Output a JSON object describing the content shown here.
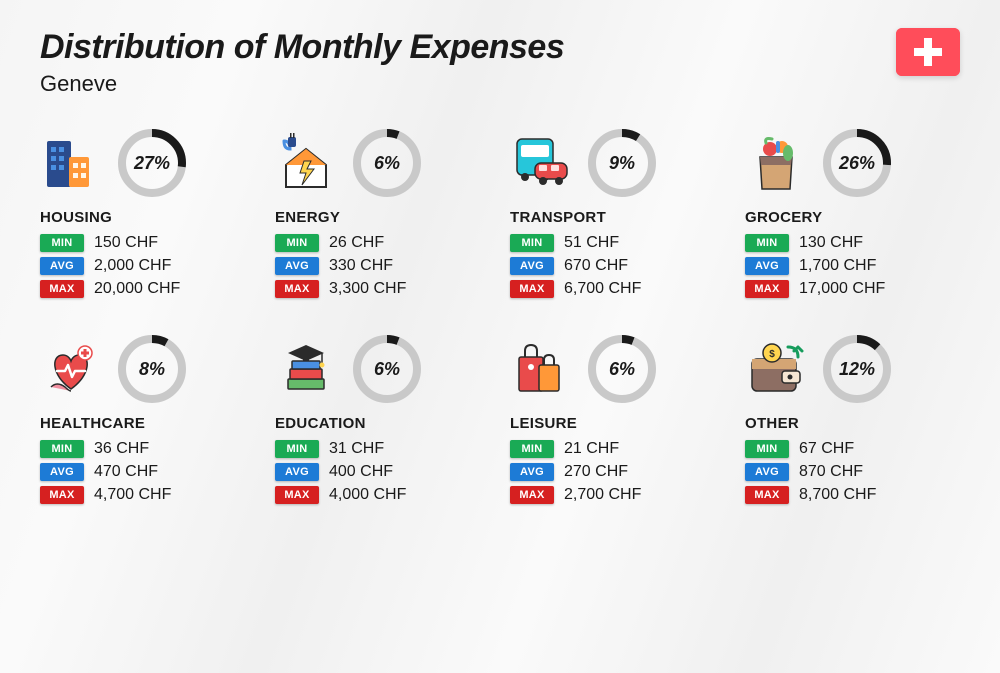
{
  "title": "Distribution of Monthly Expenses",
  "subtitle": "Geneve",
  "currency": "CHF",
  "flag": {
    "bg": "#ff4d5a",
    "cross": "#ffffff"
  },
  "badges": {
    "min": {
      "label": "MIN",
      "color": "#1aaa55"
    },
    "avg": {
      "label": "AVG",
      "color": "#1d7bd6"
    },
    "max": {
      "label": "MAX",
      "color": "#d62020"
    }
  },
  "donut": {
    "track_color": "#c9c9c9",
    "fill_color": "#1a1a1a",
    "stroke_width": 8,
    "radius": 30
  },
  "categories": [
    {
      "key": "housing",
      "name": "HOUSING",
      "pct": 27,
      "min": "150",
      "avg": "2,000",
      "max": "20,000",
      "icon": "buildings"
    },
    {
      "key": "energy",
      "name": "ENERGY",
      "pct": 6,
      "min": "26",
      "avg": "330",
      "max": "3,300",
      "icon": "power-house"
    },
    {
      "key": "transport",
      "name": "TRANSPORT",
      "pct": 9,
      "min": "51",
      "avg": "670",
      "max": "6,700",
      "icon": "bus-car"
    },
    {
      "key": "grocery",
      "name": "GROCERY",
      "pct": 26,
      "min": "130",
      "avg": "1,700",
      "max": "17,000",
      "icon": "grocery-bag"
    },
    {
      "key": "healthcare",
      "name": "HEALTHCARE",
      "pct": 8,
      "min": "36",
      "avg": "470",
      "max": "4,700",
      "icon": "heart-care"
    },
    {
      "key": "education",
      "name": "EDUCATION",
      "pct": 6,
      "min": "31",
      "avg": "400",
      "max": "4,000",
      "icon": "grad-books"
    },
    {
      "key": "leisure",
      "name": "LEISURE",
      "pct": 6,
      "min": "21",
      "avg": "270",
      "max": "2,700",
      "icon": "shopping-bags"
    },
    {
      "key": "other",
      "name": "OTHER",
      "pct": 12,
      "min": "67",
      "avg": "870",
      "max": "8,700",
      "icon": "wallet"
    }
  ],
  "icon_palette": {
    "blue": "#2a4b8d",
    "lightblue": "#4a90e2",
    "teal": "#26c6da",
    "orange": "#ff9838",
    "red": "#e94b4b",
    "yellow": "#ffd54f",
    "green": "#66bb6a",
    "darkgreen": "#169c5c",
    "brown": "#8d6e63",
    "purple": "#5e4a9e",
    "pink": "#f08fa0",
    "dark": "#2b2b2b",
    "tan": "#d4a574",
    "cream": "#f5e6d3"
  }
}
